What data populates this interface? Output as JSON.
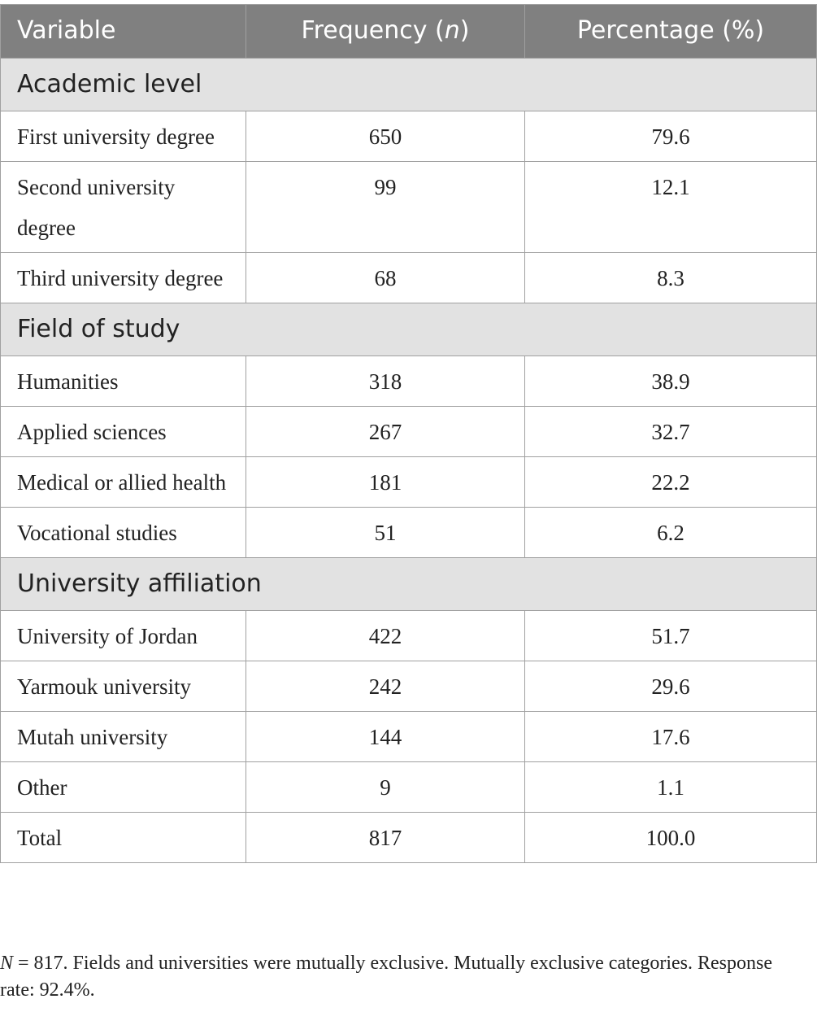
{
  "table": {
    "header": [
      {
        "text": "Variable"
      },
      {
        "text": "Frequency (",
        "italic": "n",
        "after": ")"
      },
      {
        "text": "Percentage (%)"
      }
    ],
    "sections": [
      {
        "title": "Academic level",
        "rows": [
          [
            "First university degree",
            "650",
            "79.6"
          ],
          [
            "Second university degree",
            "99",
            "12.1"
          ],
          [
            "Third university degree",
            "68",
            "8.3"
          ]
        ]
      },
      {
        "title": "Field of study",
        "rows": [
          [
            "Humanities",
            "318",
            "38.9"
          ],
          [
            "Applied sciences",
            "267",
            "32.7"
          ],
          [
            "Medical or allied health",
            "181",
            "22.2"
          ],
          [
            "Vocational studies",
            "51",
            "6.2"
          ]
        ]
      },
      {
        "title": "University affiliation",
        "rows": [
          [
            "University of Jordan",
            "422",
            "51.7"
          ],
          [
            "Yarmouk university",
            "242",
            "29.6"
          ],
          [
            "Mutah university",
            "144",
            "17.6"
          ],
          [
            "Other",
            "9",
            "1.1"
          ],
          [
            "Total",
            "817",
            "100.0"
          ]
        ]
      }
    ]
  },
  "footnote": {
    "italic": "N",
    "text": " = 817. Fields and universities were mutually exclusive. Mutually exclusive categories. Response rate: 92.4%."
  }
}
